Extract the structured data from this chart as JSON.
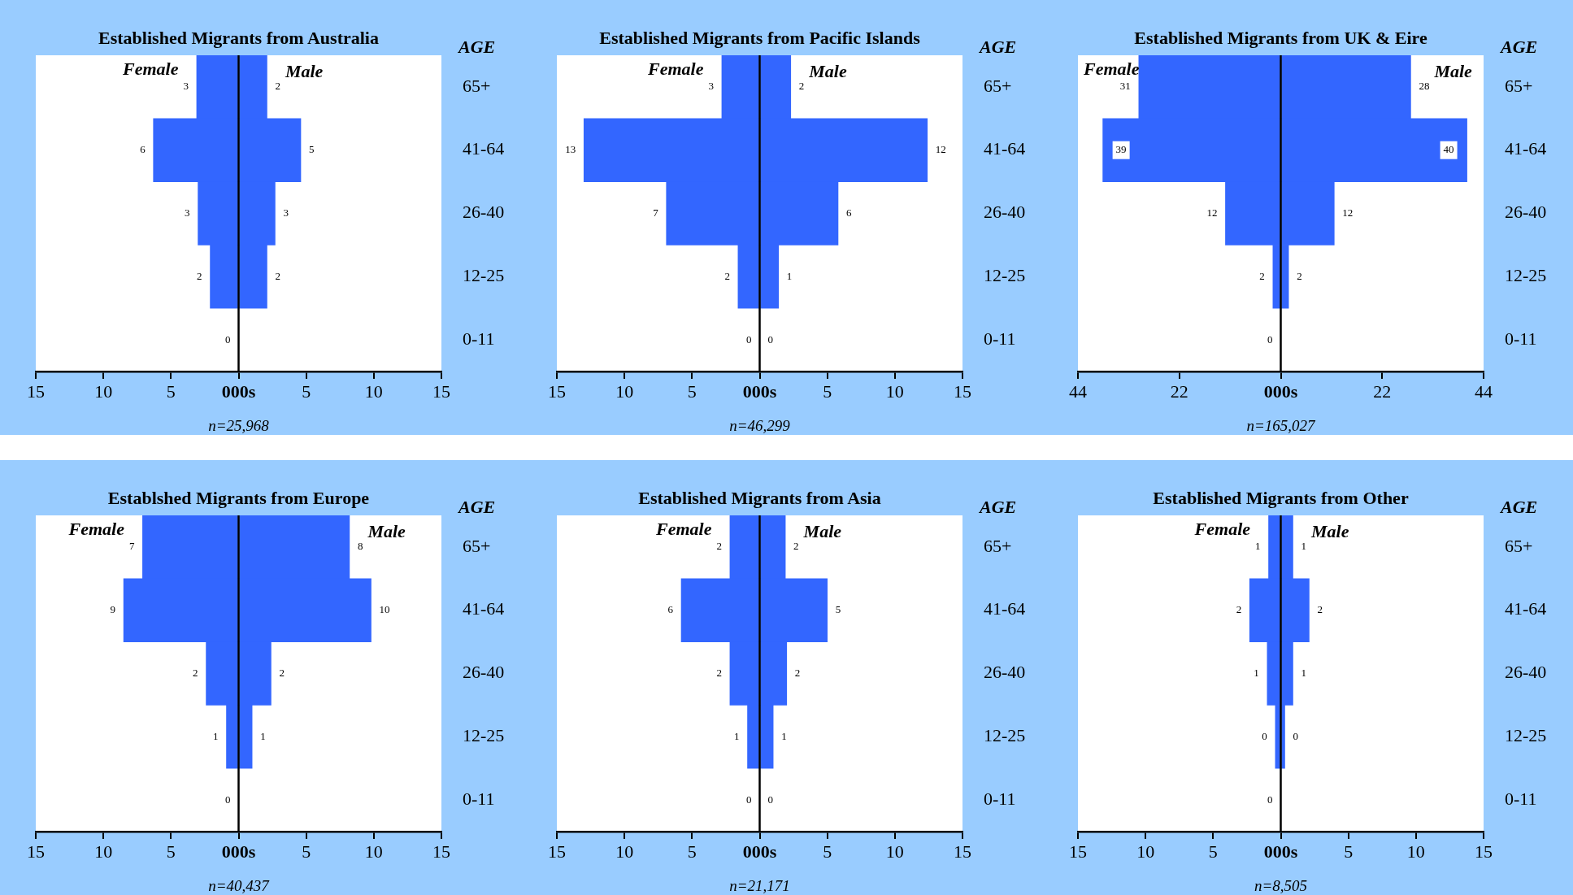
{
  "chart_data": [
    {
      "type": "bar",
      "orientation": "horizontal",
      "title": "Established Migrants from Australia",
      "ylabel": "AGE",
      "categories": [
        "65+",
        "41-64",
        "26-40",
        "12-25",
        "0-11"
      ],
      "xlim": [
        -15,
        15
      ],
      "xticks": [
        {
          "value": -15,
          "label": "15"
        },
        {
          "value": -10,
          "label": "10"
        },
        {
          "value": -5,
          "label": "5"
        },
        {
          "value": 0,
          "label": "000s"
        },
        5,
        10,
        15
      ],
      "series": [
        {
          "name": "Female",
          "color": "#3366ff",
          "base": [
            -3.1,
            -6.3,
            -3.0,
            -2.1,
            0
          ],
          "values": [
            3.1,
            6.3,
            3.0,
            2.1,
            0
          ],
          "value_labels": [
            "3",
            "6",
            "3",
            "2",
            "0"
          ]
        },
        {
          "name": "Male",
          "color": "#3366ff",
          "values": [
            2.1,
            4.6,
            2.7,
            2.1,
            0
          ],
          "value_labels": [
            "2",
            "5",
            "3",
            "2",
            null
          ]
        }
      ],
      "annotations": [
        "n=25,968"
      ]
    },
    {
      "type": "bar",
      "orientation": "horizontal",
      "title": "Established Migrants from Pacific Islands",
      "ylabel": "AGE",
      "categories": [
        "65+",
        "41-64",
        "26-40",
        "12-25",
        "0-11"
      ],
      "xlim": [
        -15,
        15
      ],
      "xticks": [
        {
          "value": -15,
          "label": "15"
        },
        {
          "value": -10,
          "label": "10"
        },
        {
          "value": -5,
          "label": "5"
        },
        {
          "value": 0,
          "label": "000s"
        },
        5,
        10,
        15
      ],
      "series": [
        {
          "name": "Female",
          "color": "#3366ff",
          "base": [
            -2.8,
            -13.0,
            -6.9,
            -1.6,
            0
          ],
          "values": [
            2.8,
            13.0,
            6.9,
            1.6,
            0
          ],
          "value_labels": [
            "3",
            "13",
            "7",
            "2",
            "0"
          ]
        },
        {
          "name": "Male",
          "color": "#3366ff",
          "values": [
            2.3,
            12.4,
            5.8,
            1.4,
            0
          ],
          "value_labels": [
            "2",
            "12",
            "6",
            "1",
            "0"
          ]
        }
      ],
      "annotations": [
        "n=46,299"
      ]
    },
    {
      "type": "bar",
      "orientation": "horizontal",
      "title": "Established Migrants from UK & Eire",
      "ylabel": "AGE",
      "categories": [
        "65+",
        "41-64",
        "26-40",
        "12-25",
        "0-11"
      ],
      "xlim": [
        -44,
        44
      ],
      "xticks": [
        {
          "value": -44,
          "label": "44"
        },
        {
          "value": -22,
          "label": "22"
        },
        {
          "value": 0,
          "label": "000s"
        },
        22,
        44
      ],
      "series": [
        {
          "name": "Female",
          "color": "#3366ff",
          "base": [
            -30.8,
            -38.6,
            -12.0,
            -1.7,
            0
          ],
          "values": [
            30.8,
            38.6,
            12.0,
            1.7,
            0
          ],
          "value_labels": [
            "31",
            "39",
            "12",
            "2",
            "0"
          ]
        },
        {
          "name": "Male",
          "color": "#3366ff",
          "values": [
            28.2,
            40.4,
            11.6,
            1.7,
            0
          ],
          "value_labels": [
            "28",
            "40",
            "12",
            "2",
            null
          ]
        }
      ],
      "annotations": [
        "n=165,027"
      ]
    },
    {
      "type": "bar",
      "orientation": "horizontal",
      "title": "Establshed Migrants from Europe",
      "ylabel": "AGE",
      "categories": [
        "65+",
        "41-64",
        "26-40",
        "12-25",
        "0-11"
      ],
      "xlim": [
        -15,
        15
      ],
      "xticks": [
        {
          "value": -15,
          "label": "15"
        },
        {
          "value": -10,
          "label": "10"
        },
        {
          "value": -5,
          "label": "5"
        },
        {
          "value": 0,
          "label": "000s"
        },
        5,
        10,
        15
      ],
      "series": [
        {
          "name": "Female",
          "color": "#3366ff",
          "base": [
            -7.1,
            -8.5,
            -2.4,
            -0.9,
            0
          ],
          "values": [
            7.1,
            8.5,
            2.4,
            0.9,
            0
          ],
          "value_labels": [
            "7",
            "9",
            "2",
            "1",
            "0"
          ]
        },
        {
          "name": "Male",
          "color": "#3366ff",
          "values": [
            8.2,
            9.8,
            2.4,
            1.0,
            0
          ],
          "value_labels": [
            "8",
            "10",
            "2",
            "1",
            null
          ]
        }
      ],
      "annotations": [
        "n=40,437"
      ]
    },
    {
      "type": "bar",
      "orientation": "horizontal",
      "title": "Established Migrants from Asia",
      "ylabel": "AGE",
      "categories": [
        "65+",
        "41-64",
        "26-40",
        "12-25",
        "0-11"
      ],
      "xlim": [
        -15,
        15
      ],
      "xticks": [
        {
          "value": -15,
          "label": "15"
        },
        {
          "value": -10,
          "label": "10"
        },
        {
          "value": -5,
          "label": "5"
        },
        {
          "value": 0,
          "label": "000s"
        },
        5,
        10,
        15
      ],
      "series": [
        {
          "name": "Female",
          "color": "#3366ff",
          "base": [
            -2.2,
            -5.8,
            -2.2,
            -0.9,
            0
          ],
          "values": [
            2.2,
            5.8,
            2.2,
            0.9,
            0
          ],
          "value_labels": [
            "2",
            "6",
            "2",
            "1",
            "0"
          ]
        },
        {
          "name": "Male",
          "color": "#3366ff",
          "values": [
            1.9,
            5.0,
            2.0,
            1.0,
            0
          ],
          "value_labels": [
            "2",
            "5",
            "2",
            "1",
            "0"
          ]
        }
      ],
      "annotations": [
        "n=21,171"
      ]
    },
    {
      "type": "bar",
      "orientation": "horizontal",
      "title": "Established Migrants from Other",
      "ylabel": "AGE",
      "categories": [
        "65+",
        "41-64",
        "26-40",
        "12-25",
        "0-11"
      ],
      "xlim": [
        -15,
        15
      ],
      "xticks": [
        {
          "value": -15,
          "label": "15"
        },
        {
          "value": -10,
          "label": "10"
        },
        {
          "value": -5,
          "label": "5"
        },
        {
          "value": 0,
          "label": "000s"
        },
        5,
        10,
        15
      ],
      "series": [
        {
          "name": "Female",
          "color": "#3366ff",
          "base": [
            -0.9,
            -2.3,
            -1.0,
            -0.4,
            0
          ],
          "values": [
            0.9,
            2.3,
            1.0,
            0.4,
            0
          ],
          "value_labels": [
            "1",
            "2",
            "1",
            "0",
            "0"
          ]
        },
        {
          "name": "Male",
          "color": "#3366ff",
          "values": [
            0.9,
            2.1,
            0.9,
            0.3,
            0
          ],
          "value_labels": [
            "1",
            "2",
            "1",
            "0",
            null
          ]
        }
      ],
      "annotations": [
        "n=8,505"
      ]
    }
  ]
}
